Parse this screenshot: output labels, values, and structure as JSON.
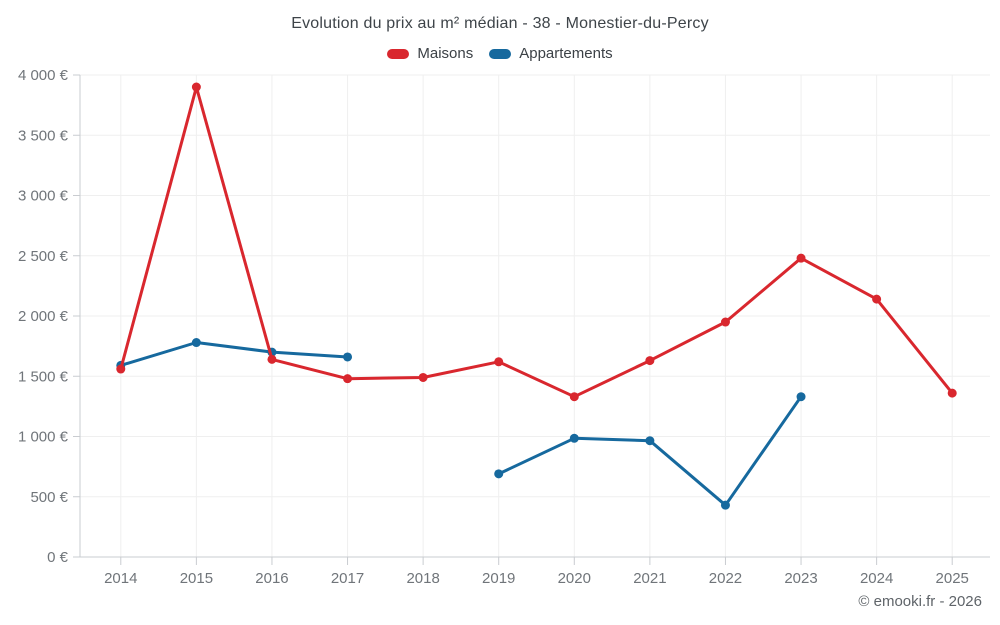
{
  "title": "Evolution du prix au m² médian - 38 - Monestier-du-Percy",
  "legend": [
    {
      "label": "Maisons",
      "color": "#d9272e"
    },
    {
      "label": "Appartements",
      "color": "#16699e"
    }
  ],
  "footer": "© emooki.fr - 2026",
  "chart_data": {
    "type": "line",
    "title": "Evolution du prix au m² médian - 38 - Monestier-du-Percy",
    "xlabel": "",
    "ylabel": "",
    "categories": [
      "2014",
      "2015",
      "2016",
      "2017",
      "2018",
      "2019",
      "2020",
      "2021",
      "2022",
      "2023",
      "2024",
      "2025"
    ],
    "series": [
      {
        "name": "Maisons",
        "color": "#d9272e",
        "values": [
          1560,
          3900,
          1640,
          1480,
          1490,
          1620,
          1330,
          1630,
          1950,
          2480,
          2140,
          1360
        ]
      },
      {
        "name": "Appartements",
        "color": "#16699e",
        "values": [
          1590,
          1780,
          1700,
          1660,
          null,
          690,
          985,
          965,
          430,
          1330,
          null,
          null
        ]
      }
    ],
    "ylim": [
      0,
      4000
    ],
    "y_tick_step": 500,
    "y_tick_labels": [
      "0 €",
      "500 €",
      "1 000 €",
      "1 500 €",
      "2 000 €",
      "2 500 €",
      "3 000 €",
      "3 500 €",
      "4 000 €"
    ],
    "grid": true,
    "legend_position": "top",
    "currency_suffix": "€"
  }
}
